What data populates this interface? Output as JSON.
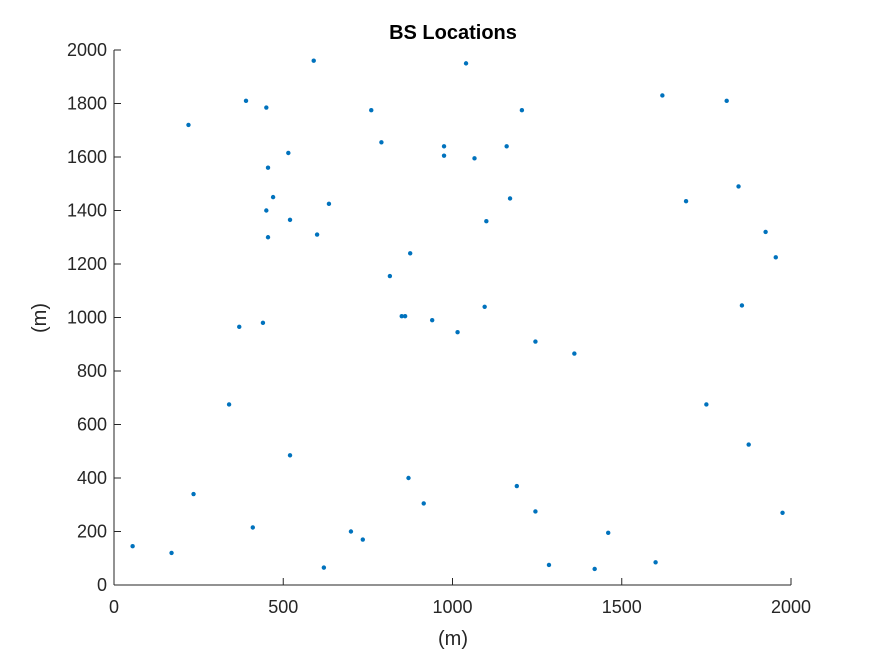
{
  "chart_data": {
    "type": "scatter",
    "title": "BS Locations",
    "xlabel": "(m)",
    "ylabel": "(m)",
    "xlim": [
      0,
      2000
    ],
    "ylim": [
      0,
      2000
    ],
    "xticks": [
      "0",
      "500",
      "1000",
      "1500",
      "2000"
    ],
    "yticks": [
      "0",
      "200",
      "400",
      "600",
      "800",
      "1000",
      "1200",
      "1400",
      "1600",
      "1800",
      "2000"
    ],
    "grid": false,
    "marker_color": "#0072BD",
    "x": [
      590,
      1040,
      390,
      450,
      220,
      760,
      1205,
      1620,
      1810,
      790,
      975,
      1065,
      1160,
      975,
      515,
      455,
      1845,
      470,
      1170,
      1690,
      635,
      450,
      520,
      1100,
      455,
      600,
      1925,
      875,
      1955,
      815,
      1855,
      1095,
      850,
      860,
      940,
      370,
      440,
      1015,
      1245,
      1360,
      340,
      1750,
      1875,
      520,
      870,
      1190,
      235,
      915,
      1245,
      1975,
      410,
      700,
      1460,
      735,
      55,
      170,
      1600,
      1285,
      620,
      1420
    ],
    "y": [
      1960,
      1950,
      1810,
      1785,
      1720,
      1775,
      1775,
      1830,
      1810,
      1655,
      1640,
      1595,
      1640,
      1605,
      1615,
      1560,
      1490,
      1450,
      1445,
      1435,
      1425,
      1400,
      1365,
      1360,
      1300,
      1310,
      1320,
      1240,
      1225,
      1155,
      1045,
      1040,
      1005,
      1005,
      990,
      965,
      980,
      945,
      910,
      865,
      675,
      675,
      525,
      485,
      400,
      370,
      340,
      305,
      275,
      270,
      215,
      200,
      195,
      170,
      145,
      120,
      85,
      75,
      65,
      60
    ]
  }
}
